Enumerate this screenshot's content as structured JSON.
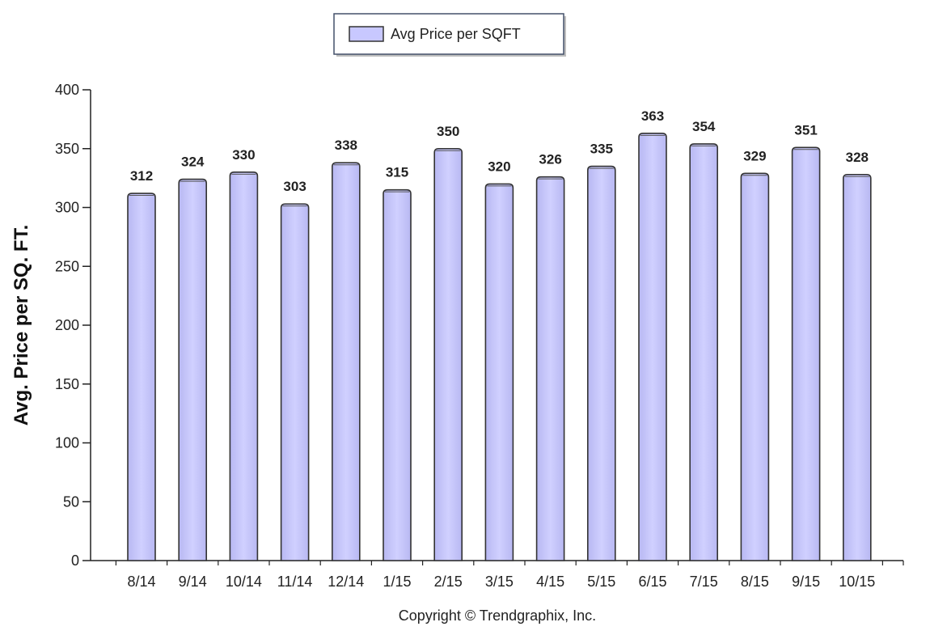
{
  "chart_data": {
    "type": "bar",
    "categories": [
      "8/14",
      "9/14",
      "10/14",
      "11/14",
      "12/14",
      "1/15",
      "2/15",
      "3/15",
      "4/15",
      "5/15",
      "6/15",
      "7/15",
      "8/15",
      "9/15",
      "10/15"
    ],
    "series": [
      {
        "name": "Avg Price per SQFT",
        "values": [
          312,
          324,
          330,
          303,
          338,
          315,
          350,
          320,
          326,
          335,
          363,
          354,
          329,
          351,
          328
        ]
      }
    ],
    "ylabel": "Avg. Price per SQ. FT.",
    "xlabel": "",
    "ylim": [
      0,
      400
    ],
    "yticks": [
      0,
      50,
      100,
      150,
      200,
      250,
      300,
      350,
      400
    ],
    "grid": false,
    "legend": "top-center",
    "data_labels": true,
    "bar_color": "#c8c8ff",
    "bar_stroke": "#333333"
  },
  "footer": {
    "copyright": "Copyright © Trendgraphix, Inc."
  }
}
